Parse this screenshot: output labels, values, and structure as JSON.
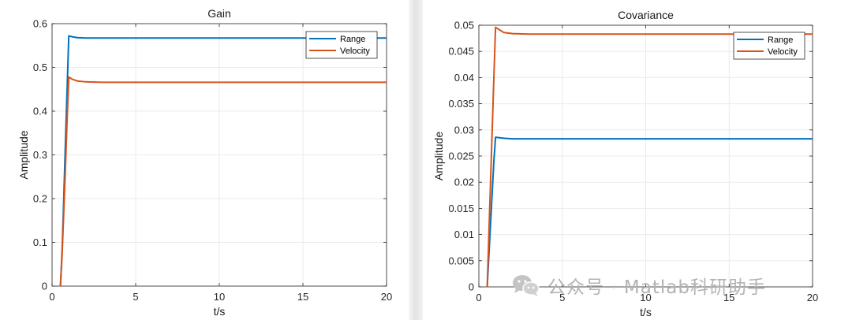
{
  "chart_data": [
    {
      "type": "line",
      "title": "Gain",
      "xlabel": "t/s",
      "ylabel": "Amplitude",
      "xlim": [
        0,
        20
      ],
      "ylim": [
        0,
        0.6
      ],
      "xticks": [
        "0",
        "5",
        "10",
        "15",
        "20"
      ],
      "yticks": [
        "0",
        "0.1",
        "0.2",
        "0.3",
        "0.4",
        "0.5",
        "0.6"
      ],
      "grid": true,
      "legend": "top-right",
      "series": [
        {
          "name": "Range",
          "color": "#0072bd",
          "x": [
            0.5,
            0.6,
            0.7,
            0.8,
            0.9,
            1.0,
            1.2,
            1.5,
            2.0,
            3.0,
            20.0
          ],
          "y": [
            0,
            0.08,
            0.2,
            0.33,
            0.45,
            0.572,
            0.57,
            0.568,
            0.567,
            0.567,
            0.567
          ]
        },
        {
          "name": "Velocity",
          "color": "#d95319",
          "x": [
            0.5,
            0.6,
            0.7,
            0.8,
            0.9,
            1.0,
            1.2,
            1.5,
            2.0,
            3.0,
            20.0
          ],
          "y": [
            0,
            0.07,
            0.17,
            0.27,
            0.38,
            0.478,
            0.473,
            0.469,
            0.467,
            0.466,
            0.466
          ]
        }
      ]
    },
    {
      "type": "line",
      "title": "Covariance",
      "xlabel": "t/s",
      "ylabel": "Amplitude",
      "xlim": [
        0,
        20
      ],
      "ylim": [
        0,
        0.05
      ],
      "xticks": [
        "0",
        "5",
        "10",
        "15",
        "20"
      ],
      "yticks": [
        "0",
        "0.005",
        "0.01",
        "0.015",
        "0.02",
        "0.025",
        "0.03",
        "0.035",
        "0.04",
        "0.045",
        "0.05"
      ],
      "grid": true,
      "legend": "top-right",
      "series": [
        {
          "name": "Range",
          "color": "#0072bd",
          "x": [
            0.5,
            0.6,
            0.7,
            0.8,
            0.9,
            1.0,
            1.5,
            2.0,
            3.0,
            20.0
          ],
          "y": [
            0,
            0.006,
            0.012,
            0.018,
            0.024,
            0.0286,
            0.0284,
            0.0283,
            0.0283,
            0.0283
          ]
        },
        {
          "name": "Velocity",
          "color": "#d95319",
          "x": [
            0.5,
            0.6,
            0.7,
            0.8,
            0.9,
            1.0,
            1.2,
            1.5,
            2.0,
            3.0,
            20.0
          ],
          "y": [
            0,
            0.01,
            0.02,
            0.03,
            0.04,
            0.0496,
            0.0492,
            0.0486,
            0.0484,
            0.0483,
            0.0483
          ]
        }
      ]
    }
  ],
  "watermark": {
    "logo": "wechat-icon",
    "text": "公众号 · Matlab科研助手"
  }
}
